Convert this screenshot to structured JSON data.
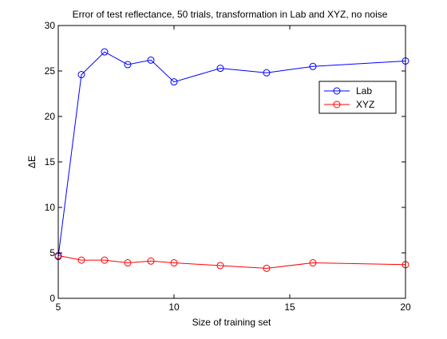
{
  "chart_data": {
    "type": "line",
    "title": "Error of test reflectance, 50 trials, transformation in Lab and XYZ, no noise",
    "xlabel": "Size of training set",
    "ylabel": "ΔE",
    "xlim": [
      5,
      20
    ],
    "ylim": [
      0,
      30
    ],
    "xticks": [
      5,
      10,
      15,
      20
    ],
    "yticks": [
      0,
      5,
      10,
      15,
      20,
      25,
      30
    ],
    "xtick_labels": [
      "5",
      "10",
      "15",
      "20"
    ],
    "ytick_labels": [
      "0",
      "5",
      "10",
      "15",
      "20",
      "25",
      "30"
    ],
    "grid": false,
    "legend_position": "upper-right",
    "series": [
      {
        "name": "Lab",
        "color": "#0000ff",
        "marker": "circle",
        "x": [
          5,
          6,
          7,
          8,
          9,
          10,
          12,
          14,
          16,
          20
        ],
        "y": [
          4.6,
          24.6,
          27.1,
          25.7,
          26.2,
          23.8,
          25.3,
          24.8,
          25.5,
          26.1
        ]
      },
      {
        "name": "XYZ",
        "color": "#ff0000",
        "marker": "circle",
        "x": [
          5,
          6,
          7,
          8,
          9,
          10,
          12,
          14,
          16,
          20
        ],
        "y": [
          4.7,
          4.2,
          4.2,
          3.9,
          4.1,
          3.9,
          3.6,
          3.3,
          3.9,
          3.7
        ]
      }
    ]
  }
}
